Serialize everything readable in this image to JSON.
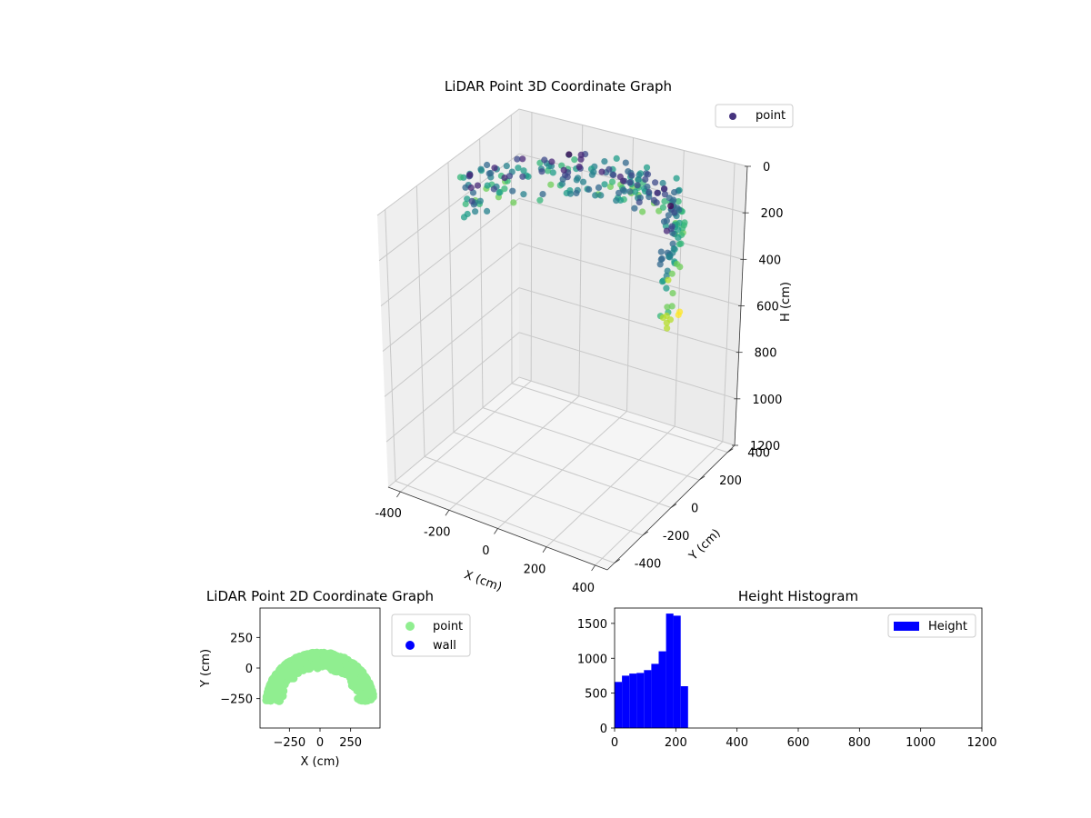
{
  "chart_data": [
    {
      "type": "scatter3d",
      "title": "LiDAR Point 3D Coordinate Graph",
      "xlabel": "X (cm)",
      "ylabel": "Y (cm)",
      "zlabel": "H (cm)",
      "xlim": [
        -450,
        450
      ],
      "ylim": [
        -450,
        450
      ],
      "zlim": [
        0,
        1200
      ],
      "z_inverted": true,
      "xticks": [
        "-400",
        "-200",
        "0",
        "200",
        "400"
      ],
      "yticks": [
        "-400",
        "-200",
        "0",
        "200",
        "400"
      ],
      "zticks": [
        "0",
        "200",
        "400",
        "600",
        "800",
        "1000",
        "1200"
      ],
      "legend": {
        "label": "point",
        "location": "upper-right"
      },
      "colormap": "viridis",
      "series": [
        {
          "name": "point",
          "shape": "arc of points over ~180 degrees, radius ~ 380-430, heights ~ 0-650"
        }
      ],
      "grid": true
    },
    {
      "type": "scatter",
      "title": "LiDAR Point 2D Coordinate Graph",
      "xlabel": "X (cm)",
      "ylabel": "Y (cm)",
      "xlim": [
        -490,
        490
      ],
      "ylim": [
        -490,
        490
      ],
      "xticks": [
        "-250",
        "0",
        "250"
      ],
      "yticks": [
        "250",
        "0",
        "-250"
      ],
      "legend_entries": [
        {
          "label": "point",
          "color": "#90ee90"
        },
        {
          "label": "wall",
          "color": "#0000ff"
        }
      ],
      "legend_location": "outside-right",
      "grid": false
    },
    {
      "type": "bar",
      "title": "Height Histogram",
      "xlabel": "",
      "ylabel": "",
      "xlim": [
        0,
        1200
      ],
      "ylim": [
        0,
        1720
      ],
      "xticks": [
        "0",
        "200",
        "400",
        "600",
        "800",
        "1000",
        "1200"
      ],
      "yticks": [
        "0",
        "500",
        "1000",
        "1500"
      ],
      "bin_width": 24,
      "bins_start": [
        0,
        24,
        48,
        72,
        96,
        120,
        144,
        168,
        192,
        216
      ],
      "values": [
        660,
        750,
        780,
        790,
        830,
        920,
        1100,
        1640,
        1610,
        600
      ],
      "legend": {
        "label": "Height",
        "color": "#0000ff",
        "location": "top-right"
      },
      "grid": false
    }
  ]
}
